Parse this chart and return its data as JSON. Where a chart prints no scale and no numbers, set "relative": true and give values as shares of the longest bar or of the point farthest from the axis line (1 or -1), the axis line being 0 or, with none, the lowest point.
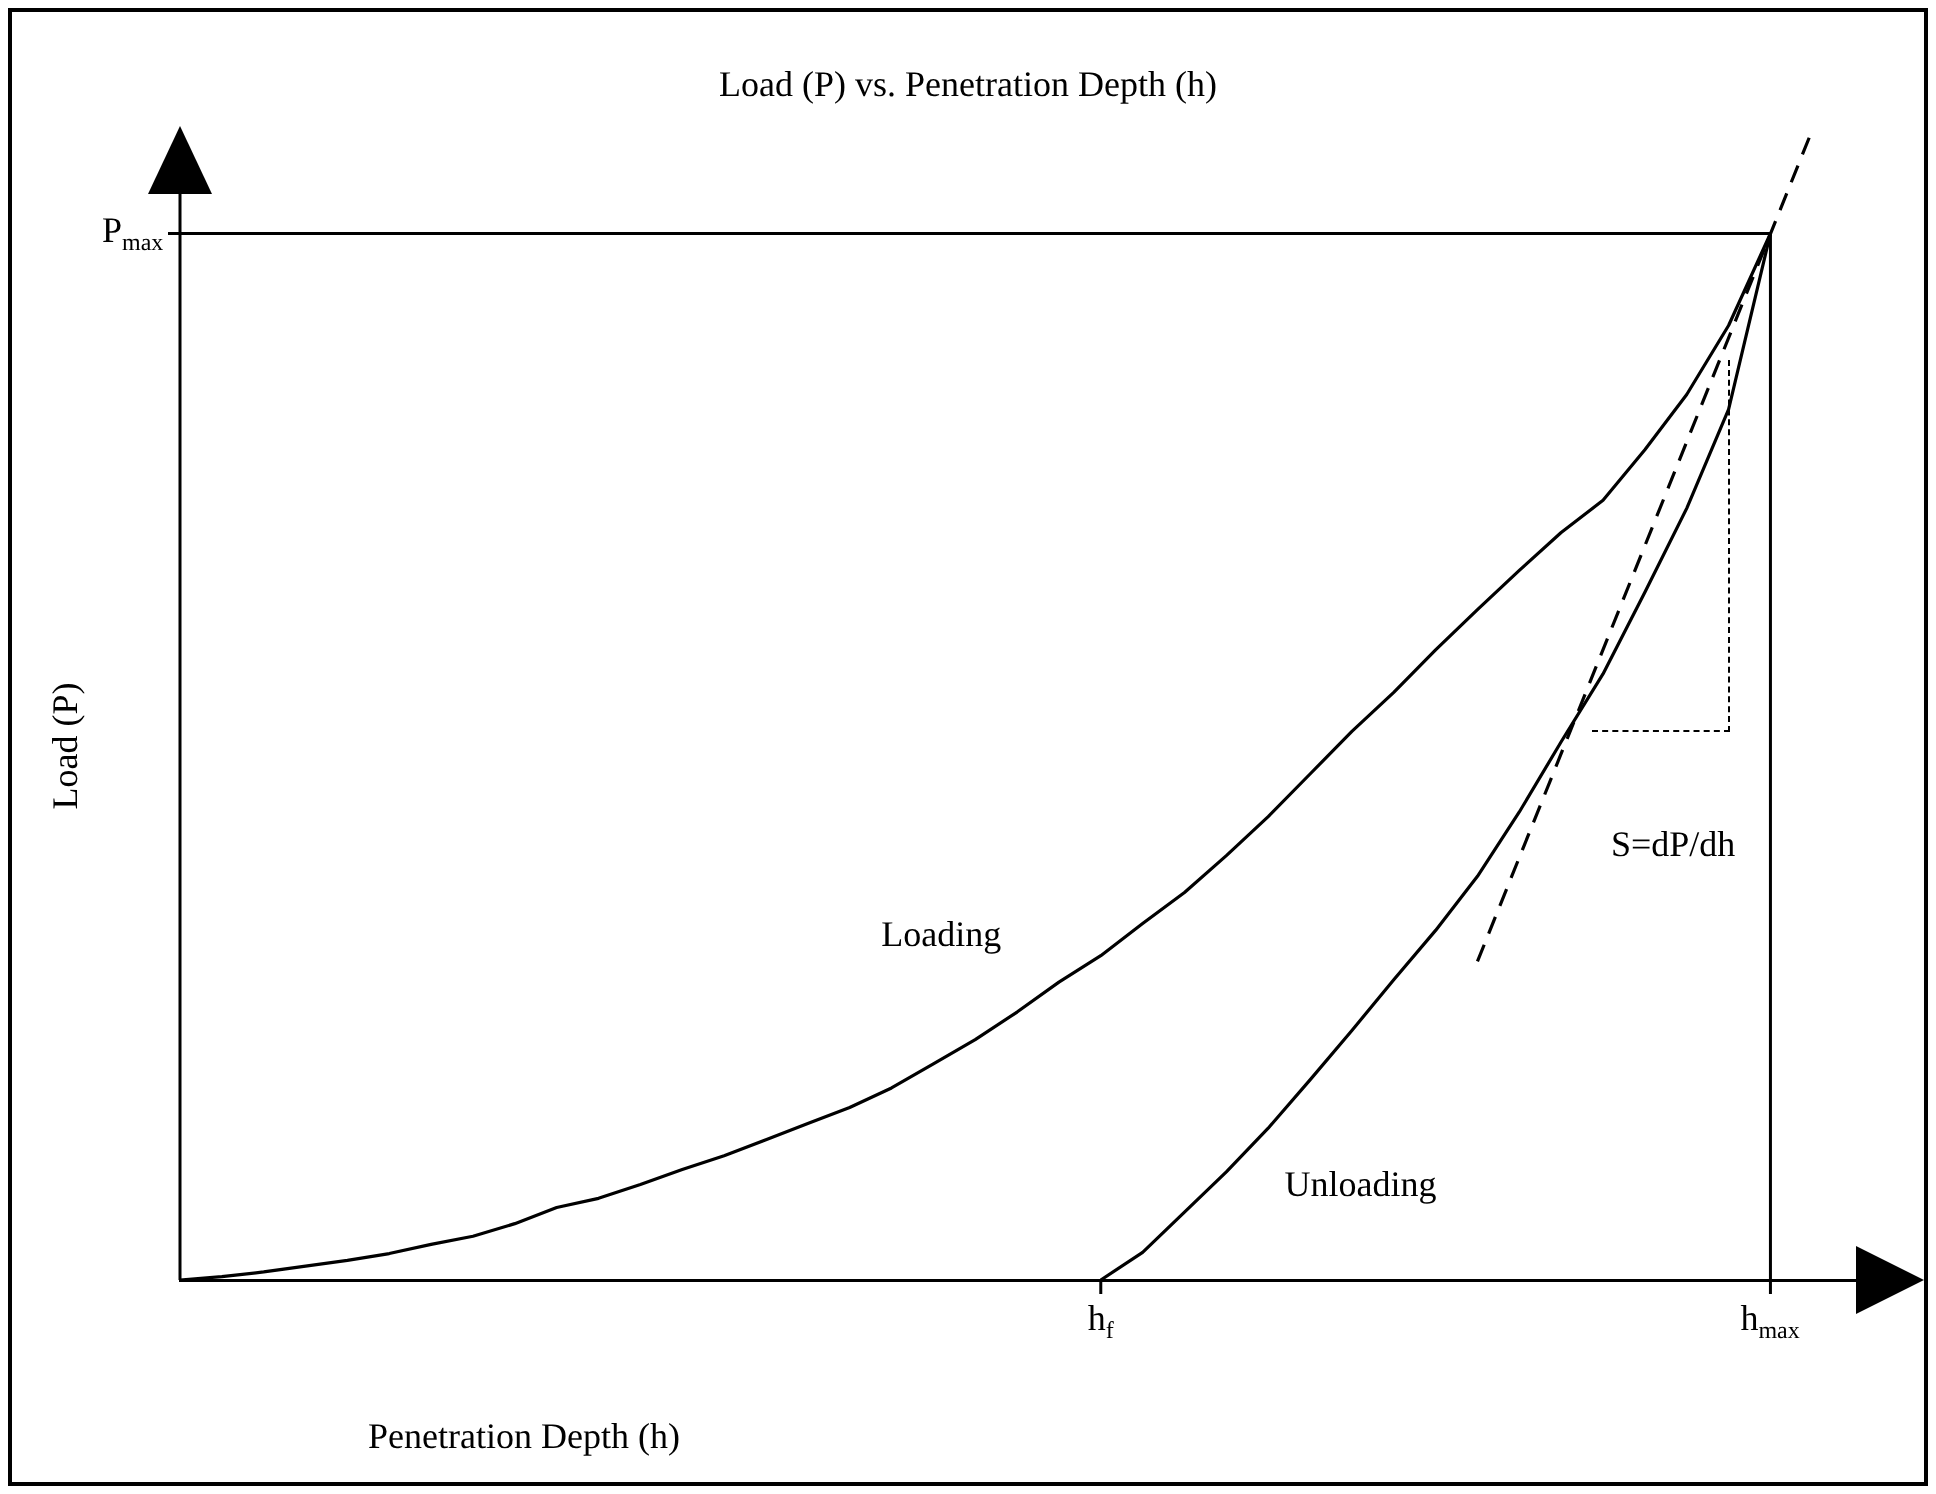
{
  "chart_data": {
    "type": "line",
    "title": "Load (P) vs.  Penetration Depth (h)",
    "xlabel": "Penetration Depth (h)",
    "ylabel": "Load (P)",
    "relative": true,
    "legend": false,
    "grid": false,
    "marker": "none",
    "categories": [
      null,
      null,
      null,
      null,
      null,
      null,
      null,
      null,
      null,
      null,
      null,
      null,
      null,
      null,
      null,
      null,
      null,
      null,
      null,
      null,
      null,
      null,
      "h$_{f}$",
      null,
      null,
      null,
      null,
      null,
      null,
      null,
      null,
      null,
      null,
      null,
      null,
      null,
      null,
      null,
      "h$_{max}$",
      null,
      null,
      null
    ],
    "series": [
      {
        "name": "Loading",
        "color": "#000000",
        "line_style": "solid",
        "values": [
          0,
          0.003,
          0.007,
          0.012,
          0.017,
          0.023,
          0.031,
          0.038,
          0.049,
          0.063,
          0.071,
          0.083,
          0.096,
          0.108,
          0.122,
          0.136,
          0.15,
          0.167,
          0.188,
          0.209,
          0.233,
          0.259,
          0.282,
          0.31,
          0.337,
          0.369,
          0.403,
          0.44,
          0.477,
          0.511,
          0.548,
          0.583,
          0.617,
          0.65,
          0.678,
          0.722,
          0.77,
          0.83,
          0.91,
          null,
          null,
          null
        ]
      },
      {
        "name": "Unloading",
        "color": "#000000",
        "line_style": "solid",
        "values": [
          null,
          null,
          null,
          null,
          null,
          null,
          null,
          null,
          null,
          null,
          null,
          null,
          null,
          null,
          null,
          null,
          null,
          null,
          null,
          null,
          null,
          null,
          0,
          0.024,
          0.059,
          0.094,
          0.132,
          0.174,
          0.217,
          0.261,
          0.304,
          0.351,
          0.407,
          0.468,
          0.527,
          0.598,
          0.671,
          0.757,
          0.91,
          null,
          null,
          null
        ]
      },
      {
        "type": "line",
        "color": "#000000",
        "line_style": "dashed",
        "values": [
          null,
          null,
          null,
          null,
          null,
          null,
          null,
          null,
          null,
          null,
          null,
          null,
          null,
          null,
          null,
          null,
          null,
          null,
          null,
          null,
          null,
          null,
          null,
          null,
          null,
          null,
          null,
          null,
          null,
          null,
          null,
          0.277,
          null,
          null,
          null,
          null,
          null,
          null,
          null,
          1,
          null,
          null
        ]
      }
    ],
    "ref_lines": [
      {
        "axis": "y",
        "value": 0.91,
        "label": "P$_{max}$"
      },
      {
        "axis": "x",
        "value": "h$_{max}$"
      }
    ],
    "annotations": [
      "S=dP/dh"
    ]
  }
}
